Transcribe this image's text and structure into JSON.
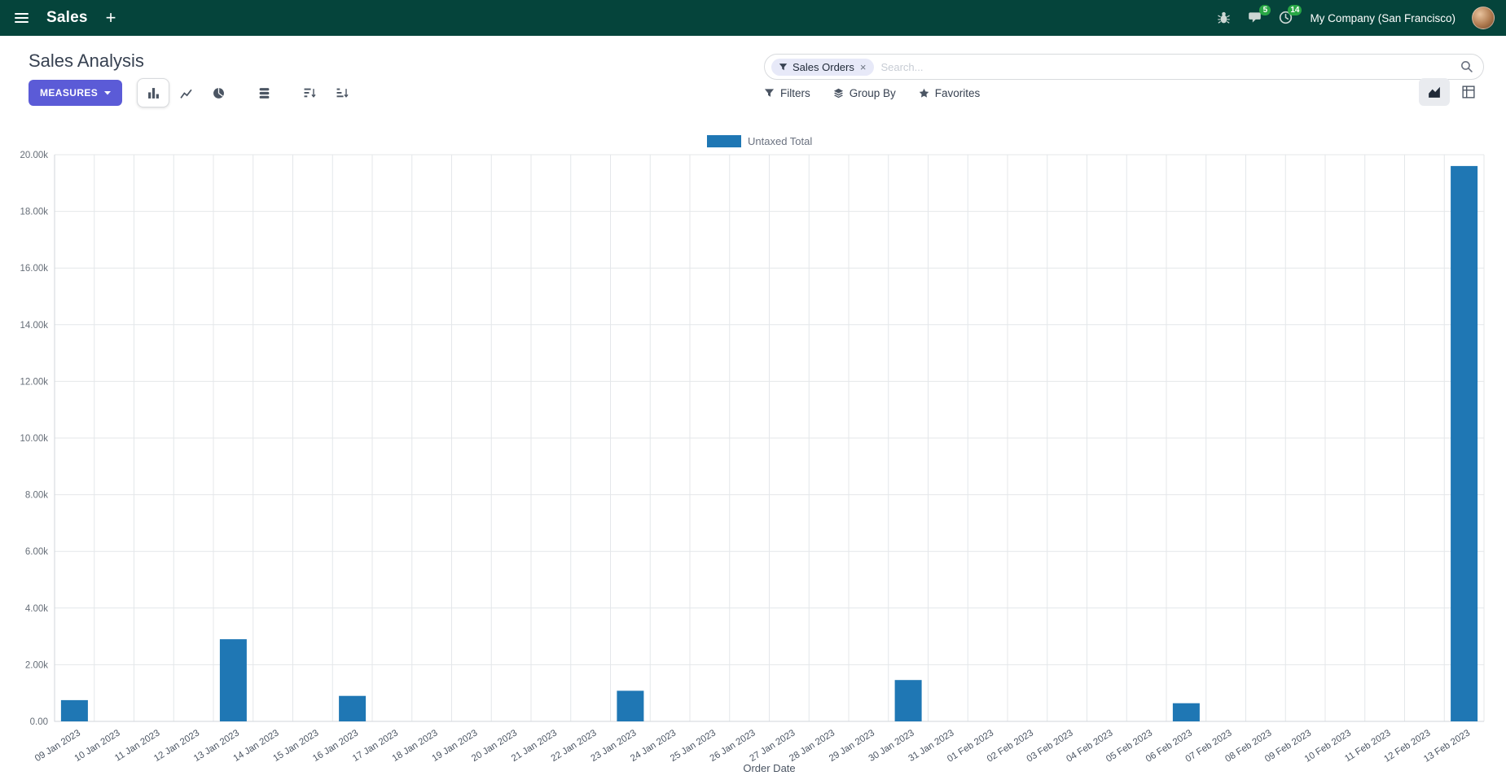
{
  "navbar": {
    "app_name": "Sales",
    "company": "My Company (San Francisco)",
    "messages_badge": "5",
    "activities_badge": "14"
  },
  "icons": {
    "plus": "+",
    "facet_remove": "×"
  },
  "control_panel": {
    "title": "Sales Analysis",
    "measures_label": "MEASURES",
    "filters_label": "Filters",
    "group_by_label": "Group By",
    "favorites_label": "Favorites",
    "search": {
      "facet": "Sales Orders",
      "placeholder": "Search..."
    }
  },
  "chart_data": {
    "type": "bar",
    "title": "",
    "categories": [
      "09 Jan 2023",
      "10 Jan 2023",
      "11 Jan 2023",
      "12 Jan 2023",
      "13 Jan 2023",
      "14 Jan 2023",
      "15 Jan 2023",
      "16 Jan 2023",
      "17 Jan 2023",
      "18 Jan 2023",
      "19 Jan 2023",
      "20 Jan 2023",
      "21 Jan 2023",
      "22 Jan 2023",
      "23 Jan 2023",
      "24 Jan 2023",
      "25 Jan 2023",
      "26 Jan 2023",
      "27 Jan 2023",
      "28 Jan 2023",
      "29 Jan 2023",
      "30 Jan 2023",
      "31 Jan 2023",
      "01 Feb 2023",
      "02 Feb 2023",
      "03 Feb 2023",
      "04 Feb 2023",
      "05 Feb 2023",
      "06 Feb 2023",
      "07 Feb 2023",
      "08 Feb 2023",
      "09 Feb 2023",
      "10 Feb 2023",
      "11 Feb 2023",
      "12 Feb 2023",
      "13 Feb 2023"
    ],
    "series": [
      {
        "name": "Untaxed Total",
        "color": "#1f77b4",
        "values": [
          750,
          0,
          0,
          0,
          2900,
          0,
          0,
          900,
          0,
          0,
          0,
          0,
          0,
          0,
          1080,
          0,
          0,
          0,
          0,
          0,
          0,
          1460,
          0,
          0,
          0,
          0,
          0,
          0,
          640,
          0,
          0,
          0,
          0,
          0,
          0,
          19600
        ]
      }
    ],
    "xlabel": "Order Date",
    "ylabel": "",
    "ylim": [
      0,
      20000
    ],
    "y_tick_step": 2000,
    "y_tick_labels": [
      "0.00",
      "2.00k",
      "4.00k",
      "6.00k",
      "8.00k",
      "10.00k",
      "12.00k",
      "14.00k",
      "16.00k",
      "18.00k",
      "20.00k"
    ],
    "grid": true,
    "legend_position": "top"
  }
}
